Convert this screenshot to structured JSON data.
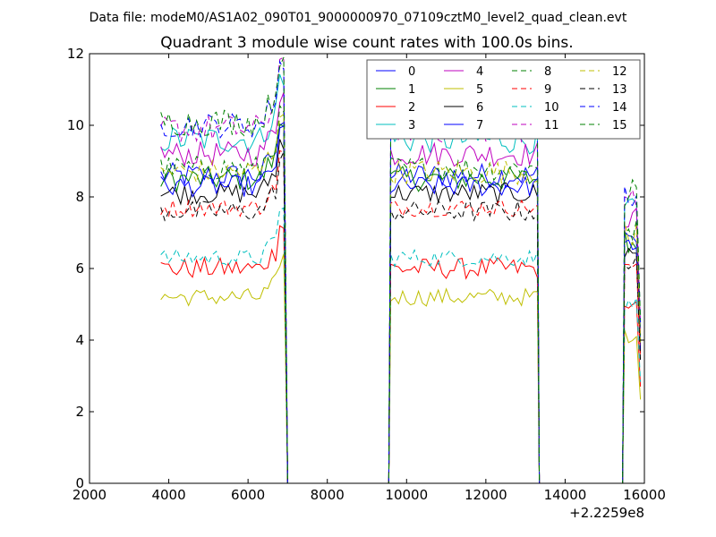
{
  "chart_data": {
    "type": "line",
    "suptitle": "Data file: modeM0/AS1A02_090T01_9000000970_07109cztM0_level2_quad_clean.evt",
    "title": "Quadrant 3 module wise count rates with 100.0s bins.",
    "xlabel": "",
    "ylabel": "",
    "x_offset_label": "+2.2259e8",
    "xlim": [
      2000,
      16000
    ],
    "ylim": [
      0,
      12
    ],
    "xticks": [
      2000,
      4000,
      6000,
      8000,
      10000,
      12000,
      14000,
      16000
    ],
    "xtick_labels": [
      "2000",
      "4000",
      "6000",
      "8000",
      "10000",
      "12000",
      "14000",
      "16000"
    ],
    "yticks": [
      0,
      2,
      4,
      6,
      8,
      10,
      12
    ],
    "ytick_labels": [
      "0",
      "2",
      "4",
      "6",
      "8",
      "10",
      "12"
    ],
    "legend_position": "top-right",
    "segments": [
      {
        "start": 3800,
        "end": 6900,
        "drop_to": 7000
      },
      {
        "start": 9600,
        "end": 13300,
        "drop_to": 13350
      },
      {
        "start": 15500,
        "end": 15900,
        "drop_to": 15900
      }
    ],
    "series": [
      {
        "name": "0",
        "color": "#0000ff",
        "style": "solid",
        "level": 8.6,
        "noise": 0.35
      },
      {
        "name": "1",
        "color": "#008000",
        "style": "solid",
        "level": 8.5,
        "noise": 0.35
      },
      {
        "name": "2",
        "color": "#ff0000",
        "style": "solid",
        "level": 6.0,
        "noise": 0.3
      },
      {
        "name": "3",
        "color": "#00bfbf",
        "style": "solid",
        "level": 9.6,
        "noise": 0.4
      },
      {
        "name": "4",
        "color": "#bf00bf",
        "style": "solid",
        "level": 9.2,
        "noise": 0.35
      },
      {
        "name": "5",
        "color": "#bfbf00",
        "style": "solid",
        "level": 5.2,
        "noise": 0.25
      },
      {
        "name": "6",
        "color": "#000000",
        "style": "solid",
        "level": 8.1,
        "noise": 0.3
      },
      {
        "name": "7",
        "color": "#0000ff",
        "style": "solid",
        "level": 8.3,
        "noise": 0.3
      },
      {
        "name": "8",
        "color": "#008000",
        "style": "dashed",
        "level": 8.8,
        "noise": 0.35
      },
      {
        "name": "9",
        "color": "#ff0000",
        "style": "dashed",
        "level": 7.7,
        "noise": 0.25
      },
      {
        "name": "10",
        "color": "#00bfbf",
        "style": "dashed",
        "level": 6.3,
        "noise": 0.25
      },
      {
        "name": "11",
        "color": "#bf00bf",
        "style": "dashed",
        "level": 9.9,
        "noise": 0.4
      },
      {
        "name": "12",
        "color": "#bfbf00",
        "style": "dashed",
        "level": 8.7,
        "noise": 0.35
      },
      {
        "name": "13",
        "color": "#000000",
        "style": "dashed",
        "level": 7.6,
        "noise": 0.3
      },
      {
        "name": "14",
        "color": "#0000ff",
        "style": "dashed",
        "level": 10.0,
        "noise": 0.35
      },
      {
        "name": "15",
        "color": "#008000",
        "style": "dashed",
        "level": 10.1,
        "noise": 0.4
      }
    ]
  }
}
